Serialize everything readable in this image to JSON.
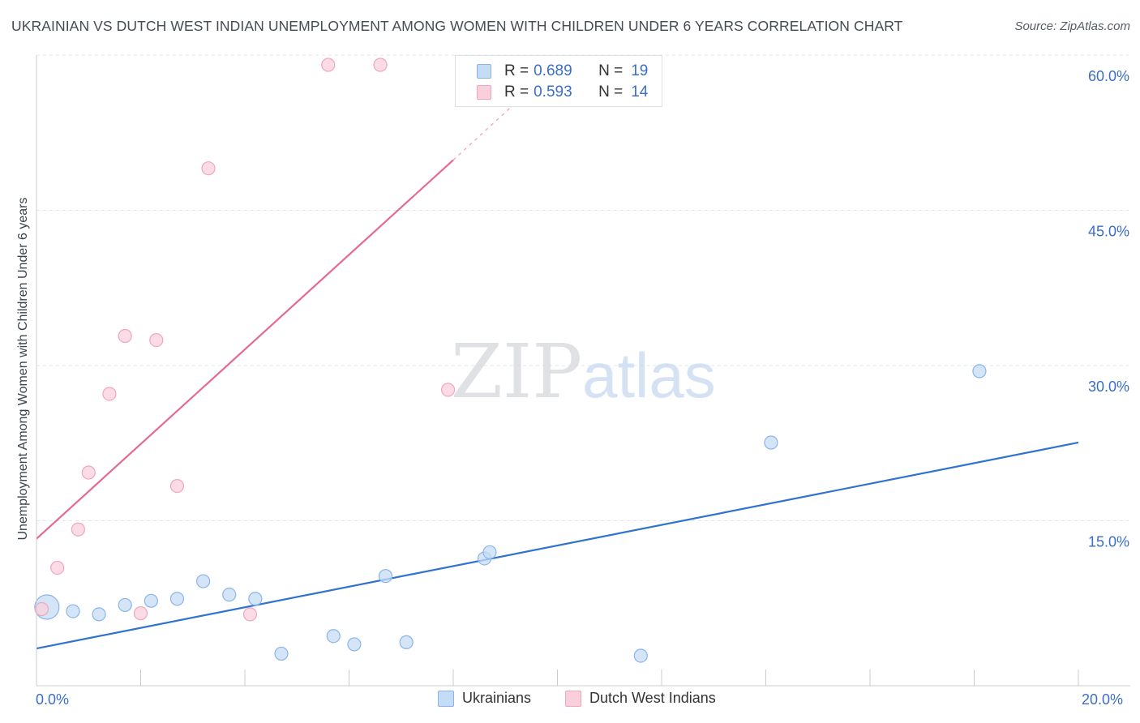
{
  "title": "UKRAINIAN VS DUTCH WEST INDIAN UNEMPLOYMENT AMONG WOMEN WITH CHILDREN UNDER 6 YEARS CORRELATION CHART",
  "source": "Source: ZipAtlas.com",
  "watermark": {
    "zip": "ZIP",
    "atlas": "atlas"
  },
  "legend": {
    "series": [
      {
        "r_label": "R =",
        "r_value": "0.689",
        "n_label": "N =",
        "n_value": "19"
      },
      {
        "r_label": "R =",
        "r_value": "0.593",
        "n_label": "N =",
        "n_value": "14"
      }
    ]
  },
  "chart_data": {
    "type": "scatter",
    "title": "UKRAINIAN VS DUTCH WEST INDIAN UNEMPLOYMENT AMONG WOMEN WITH CHILDREN UNDER 6 YEARS CORRELATION CHART",
    "xlabel": "",
    "ylabel": "Unemployment Among Women with Children Under 6 years",
    "xlim": [
      0,
      20
    ],
    "ylim": [
      0,
      60
    ],
    "x_tick_labels": [
      "0.0%",
      "20.0%"
    ],
    "y_ticks": [
      15,
      30,
      45,
      60
    ],
    "y_tick_labels": [
      "15.0%",
      "30.0%",
      "45.0%",
      "60.0%"
    ],
    "grid": true,
    "series": [
      {
        "name": "Ukrainians",
        "color": "#8ab4e8",
        "fill": "#c5dcf6",
        "line_color": "#2f72d0",
        "points": [
          {
            "x": 0.2,
            "y": 7.6,
            "big": true
          },
          {
            "x": 0.7,
            "y": 7.2
          },
          {
            "x": 1.2,
            "y": 6.9
          },
          {
            "x": 1.7,
            "y": 7.8
          },
          {
            "x": 2.2,
            "y": 8.2
          },
          {
            "x": 2.7,
            "y": 8.4
          },
          {
            "x": 3.2,
            "y": 10.1
          },
          {
            "x": 3.7,
            "y": 8.8
          },
          {
            "x": 4.2,
            "y": 8.4
          },
          {
            "x": 4.7,
            "y": 3.1
          },
          {
            "x": 5.7,
            "y": 4.8
          },
          {
            "x": 6.1,
            "y": 4.0
          },
          {
            "x": 6.7,
            "y": 10.6
          },
          {
            "x": 7.1,
            "y": 4.2
          },
          {
            "x": 8.6,
            "y": 12.3
          },
          {
            "x": 8.7,
            "y": 12.9
          },
          {
            "x": 11.6,
            "y": 2.9
          },
          {
            "x": 14.1,
            "y": 23.5
          },
          {
            "x": 18.1,
            "y": 30.4
          }
        ],
        "trend": {
          "x0": 0,
          "y0": 3.6,
          "x1": 20,
          "y1": 23.5
        }
      },
      {
        "name": "Dutch West Indians",
        "color": "#f0a6bd",
        "fill": "#f9cfdc",
        "line_color": "#e56a90",
        "points": [
          {
            "x": 0.1,
            "y": 7.4
          },
          {
            "x": 0.4,
            "y": 11.4
          },
          {
            "x": 0.8,
            "y": 15.1
          },
          {
            "x": 1.0,
            "y": 20.6
          },
          {
            "x": 1.4,
            "y": 28.2
          },
          {
            "x": 1.7,
            "y": 33.8
          },
          {
            "x": 2.0,
            "y": 7.0
          },
          {
            "x": 2.3,
            "y": 33.4
          },
          {
            "x": 2.7,
            "y": 19.3
          },
          {
            "x": 3.3,
            "y": 50.0
          },
          {
            "x": 4.1,
            "y": 6.9
          },
          {
            "x": 5.6,
            "y": 60.0
          },
          {
            "x": 6.6,
            "y": 60.0
          },
          {
            "x": 7.9,
            "y": 28.6
          }
        ],
        "trend": {
          "x0": 0,
          "y0": 14.2,
          "x1": 8.0,
          "y1": 50.8
        },
        "trend_extension": {
          "x0": 8.0,
          "y0": 50.8,
          "x1": 9.3,
          "y1": 56.8
        }
      }
    ]
  }
}
